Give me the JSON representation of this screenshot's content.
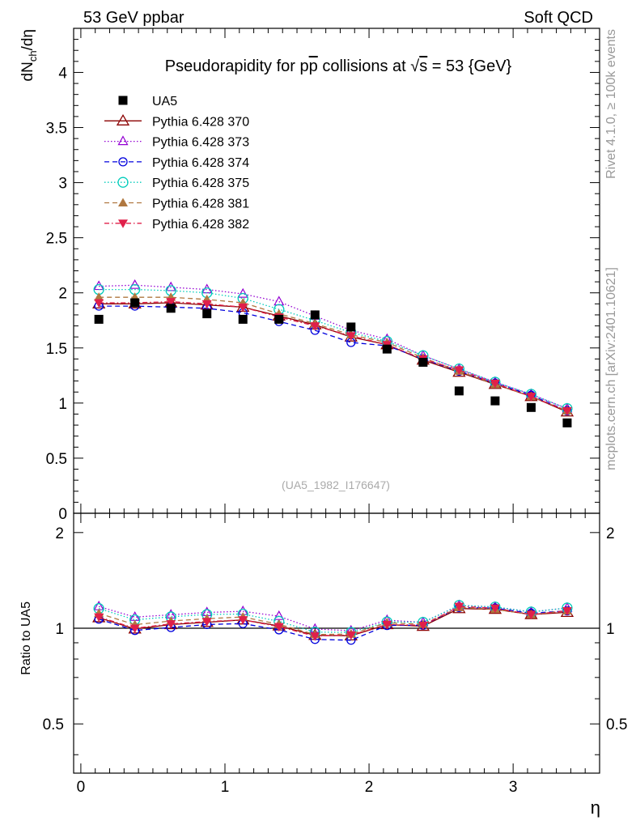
{
  "header": {
    "left": "53 GeV ppbar",
    "right": "Soft QCD"
  },
  "side_labels": {
    "rivet": "Rivet 4.1.0, ≥ 100k events",
    "mcplots": "mcplots.cern.ch [arXiv:2401.10621]"
  },
  "watermark": "(UA5_1982_I176647)",
  "chart_data": {
    "type": "scatter",
    "title": "Pseudorapidity for p̅p collisions at √s = 53 {GeV}",
    "title_parts": {
      "lead": "Pseudorapidity for p",
      "pbar": "p",
      "mid": " collisions at ",
      "sqrt": "√",
      "s": "s",
      "tail": " = 53 {GeV}"
    },
    "xlabel": "η",
    "ylabel": "dN",
    "ylabel_sub": "ch",
    "ylabel_tail": "/dη",
    "ratio_ylabel": "Ratio to UA5",
    "xlim": [
      -0.05,
      3.6
    ],
    "ylim": [
      0,
      4.4
    ],
    "ratio_ylim": [
      0.35,
      2.3
    ],
    "x_ticks": [
      0,
      1,
      2,
      3
    ],
    "x_tick_labels": [
      "0",
      "1",
      "2",
      "3"
    ],
    "y_ticks": [
      0,
      0.5,
      1,
      1.5,
      2,
      2.5,
      3,
      3.5,
      4
    ],
    "y_tick_labels": [
      "0",
      "0.5",
      "1",
      "1.5",
      "2",
      "2.5",
      "3",
      "3.5",
      "4"
    ],
    "ratio_ticks": [
      0.5,
      1,
      2
    ],
    "ratio_tick_labels": [
      "0.5",
      "1",
      "2"
    ],
    "x": [
      0.125,
      0.375,
      0.625,
      0.875,
      1.125,
      1.375,
      1.625,
      1.875,
      2.125,
      2.375,
      2.625,
      2.875,
      3.125,
      3.375
    ],
    "data": {
      "name": "UA5",
      "values": [
        1.76,
        1.91,
        1.86,
        1.81,
        1.76,
        1.76,
        1.8,
        1.69,
        1.49,
        1.37,
        1.11,
        1.02,
        0.96,
        0.82
      ]
    },
    "series": [
      {
        "name": "Pythia 6.428 370",
        "color": "#8b0000",
        "marker": "triangle-open",
        "dash": "none",
        "values": [
          1.9,
          1.9,
          1.91,
          1.89,
          1.87,
          1.79,
          1.71,
          1.6,
          1.53,
          1.39,
          1.28,
          1.17,
          1.06,
          0.92
        ]
      },
      {
        "name": "Pythia 6.428 373",
        "color": "#9400d3",
        "marker": "triangle-open-small",
        "dash": "1.5,2.5",
        "values": [
          2.06,
          2.07,
          2.05,
          2.03,
          1.99,
          1.92,
          1.79,
          1.66,
          1.58,
          1.43,
          1.31,
          1.19,
          1.08,
          0.95
        ]
      },
      {
        "name": "Pythia 6.428 374",
        "color": "#0000dd",
        "marker": "circle-open",
        "dash": "6,4",
        "values": [
          1.88,
          1.88,
          1.87,
          1.86,
          1.82,
          1.74,
          1.66,
          1.55,
          1.52,
          1.4,
          1.29,
          1.18,
          1.07,
          0.93
        ]
      },
      {
        "name": "Pythia 6.428 375",
        "color": "#00ccbb",
        "marker": "circle-open-large",
        "dash": "1.5,2.5",
        "values": [
          2.03,
          2.03,
          2.02,
          2.0,
          1.95,
          1.85,
          1.75,
          1.64,
          1.56,
          1.43,
          1.31,
          1.19,
          1.08,
          0.95
        ]
      },
      {
        "name": "Pythia 6.428 381",
        "color": "#b07840",
        "marker": "triangle-filled",
        "dash": "6,4",
        "values": [
          1.96,
          1.96,
          1.96,
          1.94,
          1.91,
          1.81,
          1.72,
          1.62,
          1.55,
          1.41,
          1.29,
          1.17,
          1.06,
          0.93
        ]
      },
      {
        "name": "Pythia 6.428 382",
        "color": "#e0204a",
        "marker": "triangle-down-filled",
        "dash": "6,3,1.5,3",
        "values": [
          1.91,
          1.91,
          1.92,
          1.9,
          1.87,
          1.78,
          1.7,
          1.61,
          1.53,
          1.4,
          1.3,
          1.18,
          1.06,
          0.93
        ]
      }
    ]
  }
}
